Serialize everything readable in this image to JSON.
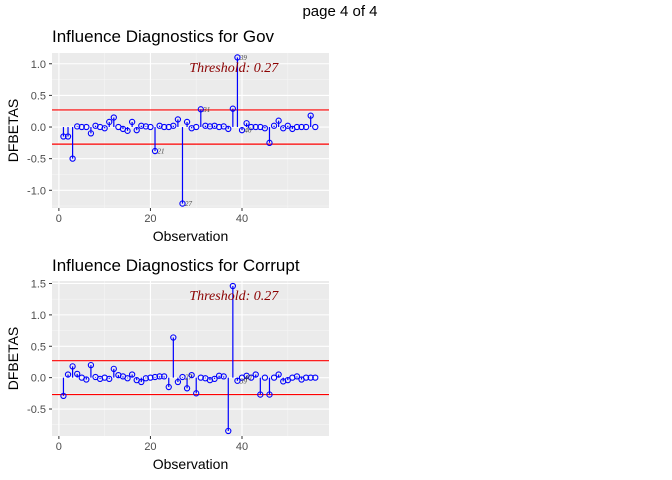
{
  "page_label": "page 4 of 4",
  "chart_data": [
    {
      "type": "scatter",
      "title": "Influence Diagnostics for Gov",
      "xlabel": "Observation",
      "ylabel": "DFBETAS",
      "xlim": [
        -1.5,
        59
      ],
      "ylim": [
        -1.28,
        1.17
      ],
      "xticks": [
        0,
        20,
        40
      ],
      "yticks": [
        -1.0,
        -0.5,
        0.0,
        0.5,
        1.0
      ],
      "ytick_labels": [
        "-1.0",
        "-0.5",
        "0.0",
        "0.5",
        "1.0"
      ],
      "threshold": 0.27,
      "threshold_text": "Threshold: 0.27",
      "x": [
        1,
        2,
        3,
        4,
        5,
        6,
        7,
        8,
        9,
        10,
        11,
        12,
        13,
        14,
        15,
        16,
        17,
        18,
        19,
        20,
        21,
        22,
        23,
        24,
        25,
        26,
        27,
        28,
        29,
        30,
        31,
        32,
        33,
        34,
        35,
        36,
        37,
        38,
        39,
        40,
        41,
        42,
        43,
        44,
        45,
        46,
        47,
        48,
        49,
        50,
        51,
        52,
        53,
        54,
        55,
        56
      ],
      "values": [
        -0.15,
        -0.15,
        -0.5,
        0.01,
        0.0,
        0.0,
        -0.1,
        0.02,
        0.0,
        -0.02,
        0.08,
        0.15,
        0.0,
        -0.03,
        -0.06,
        0.08,
        -0.05,
        0.02,
        0.01,
        0.0,
        -0.38,
        0.02,
        0.0,
        0.0,
        0.02,
        0.12,
        -1.21,
        0.08,
        -0.02,
        0.0,
        0.28,
        0.02,
        0.01,
        0.02,
        0.0,
        0.01,
        -0.03,
        0.29,
        1.1,
        -0.05,
        0.06,
        0.0,
        0.0,
        0.0,
        -0.02,
        -0.25,
        0.02,
        0.1,
        -0.02,
        0.02,
        -0.03,
        0.0,
        0.0,
        0.0,
        0.18,
        0.0
      ],
      "point_labels": [
        {
          "x": 21,
          "label": "21"
        },
        {
          "x": 27,
          "label": "27"
        },
        {
          "x": 31,
          "label": "31"
        },
        {
          "x": 39,
          "label": "39"
        },
        {
          "x": 40,
          "label": "40"
        }
      ],
      "point_color": "#0000ff",
      "threshold_color": "#ff0000",
      "panel_color": "#ebebeb",
      "grid": true
    },
    {
      "type": "scatter",
      "title": "Influence Diagnostics for Corrupt",
      "xlabel": "Observation",
      "ylabel": "DFBETAS",
      "xlim": [
        -1.5,
        59
      ],
      "ylim": [
        -0.93,
        1.54
      ],
      "xticks": [
        0,
        20,
        40
      ],
      "yticks": [
        -0.5,
        0.0,
        0.5,
        1.0,
        1.5
      ],
      "ytick_labels": [
        "-0.5",
        "0.0",
        "0.5",
        "1.0",
        "1.5"
      ],
      "threshold": 0.27,
      "threshold_text": "Threshold: 0.27",
      "x": [
        1,
        2,
        3,
        4,
        5,
        6,
        7,
        8,
        9,
        10,
        11,
        12,
        13,
        14,
        15,
        16,
        17,
        18,
        19,
        20,
        21,
        22,
        23,
        24,
        25,
        26,
        27,
        28,
        29,
        30,
        31,
        32,
        33,
        34,
        35,
        36,
        37,
        38,
        39,
        40,
        41,
        42,
        43,
        44,
        45,
        46,
        47,
        48,
        49,
        50,
        51,
        52,
        53,
        54,
        55,
        56
      ],
      "values": [
        -0.29,
        0.05,
        0.18,
        0.06,
        0.0,
        -0.03,
        0.2,
        0.01,
        -0.02,
        0.0,
        -0.02,
        0.14,
        0.04,
        0.02,
        -0.01,
        0.05,
        -0.04,
        -0.07,
        -0.01,
        0.0,
        0.01,
        0.02,
        0.02,
        -0.15,
        0.64,
        -0.07,
        0.01,
        -0.17,
        0.04,
        -0.25,
        0.0,
        -0.01,
        -0.04,
        -0.02,
        0.03,
        0.02,
        -0.85,
        1.46,
        -0.05,
        0.0,
        0.03,
        0.0,
        0.05,
        -0.27,
        0.0,
        -0.27,
        0.0,
        0.05,
        -0.06,
        -0.04,
        0.0,
        0.02,
        -0.03,
        0.0,
        0.0,
        0.0
      ],
      "point_labels": [
        {
          "x": 27,
          "label": "27"
        },
        {
          "x": 39,
          "label": "39"
        },
        {
          "x": 40,
          "label": "40"
        }
      ],
      "point_color": "#0000ff",
      "threshold_color": "#ff0000",
      "panel_color": "#ebebeb",
      "grid": true
    }
  ]
}
